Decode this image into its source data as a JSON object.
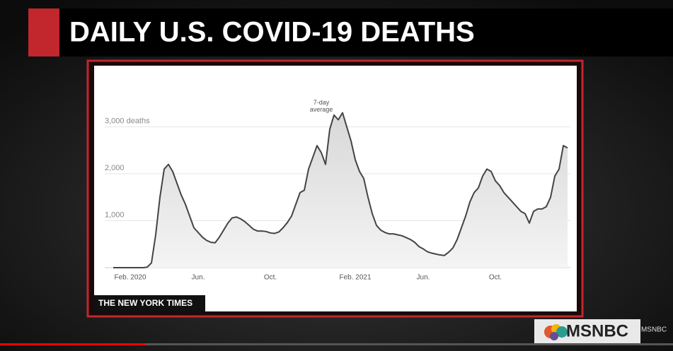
{
  "header": {
    "title": "DAILY U.S. COVID-19 DEATHS"
  },
  "chart_data": {
    "type": "area",
    "categories": [
      null,
      null,
      null,
      null,
      "Feb. 2020",
      null,
      null,
      null,
      null,
      null,
      null,
      null,
      null,
      null,
      null,
      null,
      null,
      null,
      null,
      null,
      "Jun.",
      null,
      null,
      null,
      null,
      null,
      null,
      null,
      null,
      null,
      null,
      null,
      null,
      null,
      null,
      null,
      null,
      "Oct.",
      null,
      null,
      null,
      null,
      null,
      null,
      null,
      null,
      null,
      null,
      null,
      null,
      null,
      null,
      null,
      null,
      null,
      null,
      null,
      "Feb. 2021",
      null,
      null,
      null,
      null,
      null,
      null,
      null,
      null,
      null,
      null,
      null,
      null,
      null,
      null,
      null,
      "Jun.",
      null,
      null,
      null,
      null,
      null,
      null,
      null,
      null,
      null,
      null,
      null,
      null,
      null,
      null,
      null,
      null,
      "Oct.",
      null,
      null,
      null,
      null,
      null,
      null,
      null,
      null,
      null,
      null,
      null,
      null,
      null,
      null,
      null,
      null,
      null
    ],
    "values": [
      0,
      0,
      0,
      0,
      0,
      0,
      0,
      0,
      10,
      100,
      700,
      1500,
      2100,
      2200,
      2050,
      1800,
      1550,
      1350,
      1100,
      850,
      750,
      650,
      580,
      540,
      530,
      650,
      800,
      950,
      1060,
      1080,
      1040,
      980,
      900,
      820,
      780,
      780,
      770,
      740,
      730,
      760,
      850,
      960,
      1100,
      1350,
      1600,
      1650,
      2100,
      2350,
      2600,
      2450,
      2200,
      2950,
      3250,
      3150,
      3300,
      3000,
      2700,
      2300,
      2050,
      1900,
      1500,
      1150,
      900,
      800,
      750,
      720,
      720,
      700,
      680,
      640,
      600,
      540,
      450,
      400,
      340,
      310,
      290,
      270,
      260,
      330,
      420,
      600,
      850,
      1100,
      1400,
      1600,
      1700,
      1950,
      2100,
      2050,
      1850,
      1750,
      1600,
      1500,
      1400,
      1300,
      1200,
      1150,
      950,
      1200,
      1250,
      1250,
      1300,
      1500,
      1950,
      2100,
      2600,
      2550
    ],
    "color": "#444444",
    "annotation": [
      "7-day",
      "average"
    ],
    "ylim": [
      0,
      3400
    ],
    "yticks": [
      {
        "value": 1000,
        "label": "1,000"
      },
      {
        "value": 2000,
        "label": "2,000"
      },
      {
        "value": 3000,
        "label": "3,000 deaths"
      }
    ],
    "grid": true
  },
  "source": "THE NEW YORK TIMES",
  "network": {
    "logo": "MSNBC",
    "watermark": "MSNBC"
  }
}
